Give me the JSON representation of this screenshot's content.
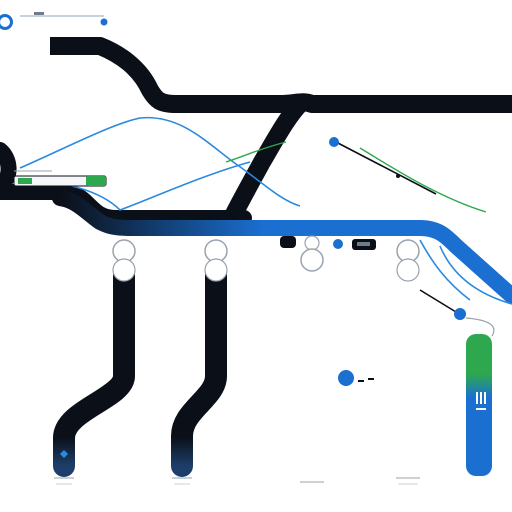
{
  "colors": {
    "background": "#ffffff",
    "ink": "#0b0f17",
    "blue": "#1a6fd1",
    "blue_light": "#2a8ae0",
    "green": "#2ea84f",
    "grey": "#9aa3ad"
  },
  "icons": {
    "ring": "circle-outline-icon",
    "dot": "dot-icon",
    "chip": "rounded-chip-icon"
  }
}
